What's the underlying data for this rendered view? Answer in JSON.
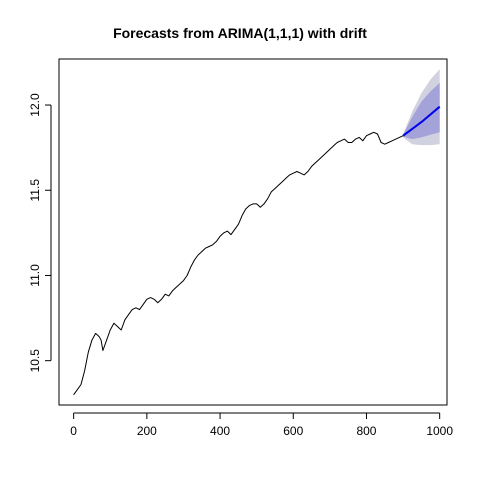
{
  "chart_data": {
    "type": "line",
    "title": "Forecasts from ARIMA(1,1,1) with drift",
    "xlabel": "",
    "ylabel": "",
    "xlim": [
      -40,
      1020
    ],
    "ylim": [
      10.24,
      12.27
    ],
    "xticks": [
      0,
      200,
      400,
      600,
      800,
      1000
    ],
    "yticks": [
      10.5,
      11.0,
      11.5,
      12.0
    ],
    "xtick_labels": [
      "0",
      "200",
      "400",
      "600",
      "800",
      "1000"
    ],
    "ytick_labels": [
      "10.5",
      "11.0",
      "11.5",
      "12.0"
    ],
    "series": [
      {
        "name": "observed",
        "color": "#000000",
        "x": [
          0,
          10,
          20,
          30,
          40,
          50,
          60,
          70,
          75,
          80,
          90,
          100,
          110,
          120,
          130,
          140,
          150,
          160,
          170,
          180,
          190,
          200,
          210,
          220,
          230,
          240,
          250,
          260,
          270,
          280,
          290,
          300,
          310,
          320,
          330,
          340,
          350,
          360,
          370,
          380,
          390,
          400,
          410,
          420,
          430,
          440,
          450,
          460,
          470,
          480,
          490,
          500,
          510,
          520,
          530,
          540,
          550,
          560,
          570,
          580,
          590,
          600,
          610,
          620,
          630,
          640,
          650,
          660,
          670,
          680,
          690,
          700,
          710,
          720,
          730,
          740,
          750,
          760,
          770,
          780,
          790,
          800,
          810,
          820,
          830,
          840,
          850,
          860,
          870,
          880,
          890,
          900
        ],
        "y": [
          10.3,
          10.33,
          10.36,
          10.44,
          10.55,
          10.62,
          10.66,
          10.64,
          10.62,
          10.56,
          10.62,
          10.68,
          10.72,
          10.7,
          10.68,
          10.74,
          10.77,
          10.8,
          10.81,
          10.8,
          10.83,
          10.86,
          10.87,
          10.86,
          10.84,
          10.86,
          10.89,
          10.88,
          10.91,
          10.93,
          10.95,
          10.97,
          11.0,
          11.05,
          11.09,
          11.12,
          11.14,
          11.16,
          11.17,
          11.18,
          11.2,
          11.23,
          11.25,
          11.26,
          11.24,
          11.27,
          11.3,
          11.35,
          11.39,
          11.41,
          11.42,
          11.42,
          11.4,
          11.42,
          11.45,
          11.49,
          11.51,
          11.53,
          11.55,
          11.57,
          11.59,
          11.6,
          11.61,
          11.6,
          11.59,
          11.61,
          11.64,
          11.66,
          11.68,
          11.7,
          11.72,
          11.74,
          11.76,
          11.78,
          11.79,
          11.8,
          11.78,
          11.78,
          11.8,
          11.81,
          11.79,
          11.82,
          11.83,
          11.84,
          11.83,
          11.78,
          11.77,
          11.78,
          11.79,
          11.8,
          11.81,
          11.82
        ]
      },
      {
        "name": "forecast",
        "color": "#0000ee",
        "x": [
          900,
          950,
          1000
        ],
        "y": [
          11.82,
          11.9,
          11.99
        ]
      }
    ],
    "bands": [
      {
        "name": "95% interval",
        "color": "#d1d1e0",
        "x": [
          900,
          925,
          950,
          975,
          1000
        ],
        "lower": [
          11.81,
          11.77,
          11.765,
          11.765,
          11.77
        ],
        "upper": [
          11.83,
          11.96,
          12.07,
          12.15,
          12.21
        ]
      },
      {
        "name": "80% interval",
        "color": "#a3a3d9",
        "x": [
          900,
          925,
          950,
          975,
          1000
        ],
        "lower": [
          11.815,
          11.8,
          11.81,
          11.825,
          11.84
        ],
        "upper": [
          11.825,
          11.93,
          12.02,
          12.08,
          12.13
        ]
      }
    ]
  }
}
